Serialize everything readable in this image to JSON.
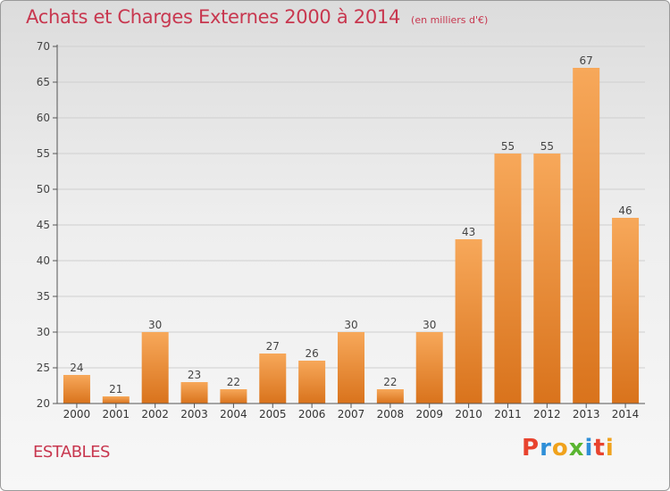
{
  "header": {
    "title": "Achats et Charges Externes 2000 à 2014",
    "unit": "(en milliers d'€)"
  },
  "footer": {
    "commune": "ESTABLES",
    "logo": "Proxiti"
  },
  "colors": {
    "title": "#c8374f",
    "bar_top": "#f7a85a",
    "bar_bottom": "#d9731c",
    "grid": "#cfcfcf",
    "axis": "#555555",
    "logo": [
      "#e8432e",
      "#2f8fd8",
      "#f0a21c",
      "#5ab531",
      "#2f8fd8",
      "#e8432e",
      "#f0a21c"
    ]
  },
  "chart_data": {
    "type": "bar",
    "title": "Achats et Charges Externes 2000 à 2014",
    "subtitle": "(en milliers d'€)",
    "xlabel": "",
    "ylabel": "",
    "categories": [
      "2000",
      "2001",
      "2002",
      "2003",
      "2004",
      "2005",
      "2006",
      "2007",
      "2008",
      "2009",
      "2010",
      "2011",
      "2012",
      "2013",
      "2014"
    ],
    "values": [
      24,
      21,
      30,
      23,
      22,
      27,
      26,
      30,
      22,
      30,
      43,
      55,
      55,
      67,
      46
    ],
    "ylim": [
      20,
      70
    ],
    "yticks": [
      20,
      25,
      30,
      35,
      40,
      45,
      50,
      55,
      60,
      65,
      70
    ],
    "grid": true,
    "legend": "none"
  }
}
